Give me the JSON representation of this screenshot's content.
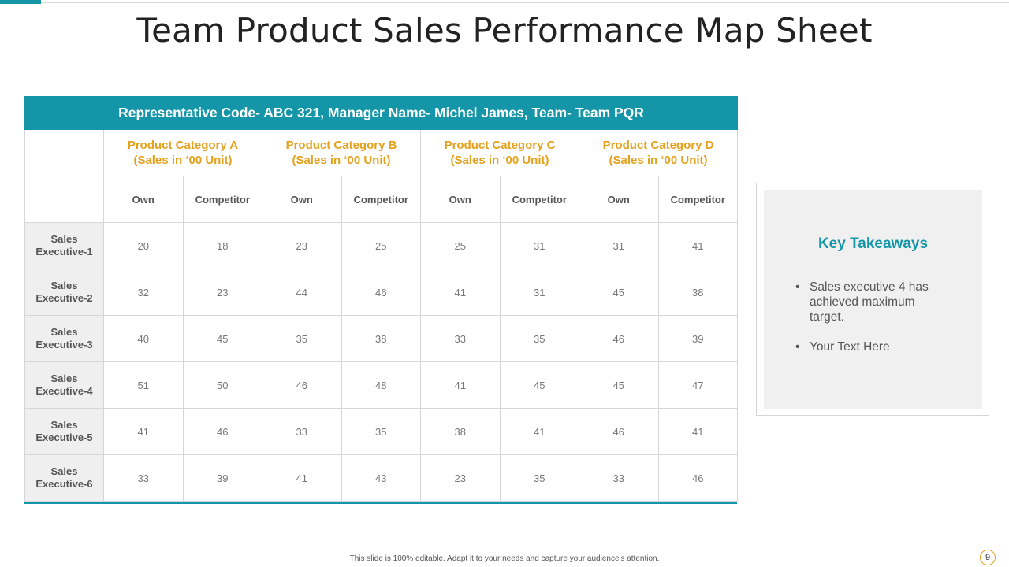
{
  "slide": {
    "title": "Team Product Sales Performance Map Sheet",
    "page_number": "9",
    "footer": "This slide is 100% editable. Adapt it to your needs and capture your audience's attention."
  },
  "table": {
    "banner": "Representative Code- ABC 321, Manager Name- Michel James, Team- Team PQR",
    "categories": [
      {
        "line1": "Product Category A",
        "line2": "(Sales in ‘00 Unit)"
      },
      {
        "line1": "Product Category B",
        "line2": "(Sales in ‘00 Unit)"
      },
      {
        "line1": "Product Category C",
        "line2": "(Sales in ‘00 Unit)"
      },
      {
        "line1": "Product Category D",
        "line2": "(Sales in ‘00 Unit)"
      }
    ],
    "subheaders": [
      "Own",
      "Competitor",
      "Own",
      "Competitor",
      "Own",
      "Competitor",
      "Own",
      "Competitor"
    ],
    "rows": [
      {
        "label1": "Sales",
        "label2": "Executive-1",
        "values": [
          "20",
          "18",
          "23",
          "25",
          "25",
          "31",
          "31",
          "41"
        ]
      },
      {
        "label1": "Sales",
        "label2": "Executive-2",
        "values": [
          "32",
          "23",
          "44",
          "46",
          "41",
          "31",
          "45",
          "38"
        ]
      },
      {
        "label1": "Sales",
        "label2": "Executive-3",
        "values": [
          "40",
          "45",
          "35",
          "38",
          "33",
          "35",
          "46",
          "39"
        ]
      },
      {
        "label1": "Sales",
        "label2": "Executive-4",
        "values": [
          "51",
          "50",
          "46",
          "48",
          "41",
          "45",
          "45",
          "47"
        ]
      },
      {
        "label1": "Sales",
        "label2": "Executive-5",
        "values": [
          "41",
          "46",
          "33",
          "35",
          "38",
          "41",
          "46",
          "41"
        ]
      },
      {
        "label1": "Sales",
        "label2": "Executive-6",
        "values": [
          "33",
          "39",
          "41",
          "43",
          "23",
          "35",
          "33",
          "46"
        ]
      }
    ]
  },
  "takeaways": {
    "title": "Key Takeaways",
    "items": [
      "Sales executive  4 has achieved maximum target.",
      "Your Text Here"
    ]
  },
  "colors": {
    "accent_teal": "#1596a8",
    "accent_gold": "#e6a11c",
    "row_header_bg": "#efefef",
    "panel_bg": "#f0f0f0"
  }
}
